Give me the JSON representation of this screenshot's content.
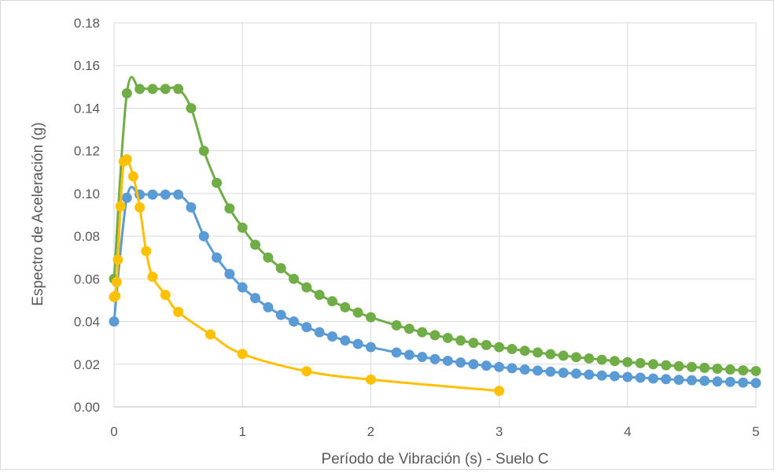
{
  "chart_data": {
    "type": "scatter",
    "title": "",
    "xlabel": "Período de Vibración (s) - Suelo C",
    "ylabel": "Espectro de Aceleración (g)",
    "xlim": [
      0,
      5
    ],
    "ylim": [
      0,
      0.18
    ],
    "x_ticks": [
      "0",
      "1",
      "2",
      "3",
      "4",
      "5"
    ],
    "y_ticks": [
      "0.00",
      "0.02",
      "0.04",
      "0.06",
      "0.08",
      "0.10",
      "0.12",
      "0.14",
      "0.16",
      "0.18"
    ],
    "grid": true,
    "legend": "none",
    "series": [
      {
        "color": "#70ad47",
        "x": [
          0,
          0.1,
          0.2,
          0.3,
          0.4,
          0.5,
          0.6,
          0.7,
          0.8,
          0.9,
          1.0,
          1.1,
          1.2,
          1.3,
          1.4,
          1.5,
          1.6,
          1.7,
          1.8,
          1.9,
          2.0,
          2.2,
          2.3,
          2.4,
          2.5,
          2.6,
          2.7,
          2.8,
          2.9,
          3.0,
          3.1,
          3.2,
          3.3,
          3.4,
          3.5,
          3.6,
          3.7,
          3.8,
          3.9,
          4.0,
          4.1,
          4.2,
          4.3,
          4.4,
          4.5,
          4.6,
          4.7,
          4.8,
          4.9,
          5.0
        ],
        "y": [
          0.06,
          0.147,
          0.149,
          0.149,
          0.149,
          0.149,
          0.14,
          0.12,
          0.105,
          0.093,
          0.084,
          0.076,
          0.07,
          0.065,
          0.06,
          0.056,
          0.0525,
          0.0495,
          0.0467,
          0.0442,
          0.042,
          0.0382,
          0.0366,
          0.035,
          0.0336,
          0.0323,
          0.0311,
          0.03,
          0.029,
          0.028,
          0.0271,
          0.0263,
          0.0255,
          0.0247,
          0.024,
          0.0233,
          0.0227,
          0.0221,
          0.0215,
          0.021,
          0.0205,
          0.02,
          0.0195,
          0.0191,
          0.0187,
          0.0183,
          0.0179,
          0.0175,
          0.0171,
          0.0168
        ]
      },
      {
        "color": "#5b9bd5",
        "x": [
          0,
          0.1,
          0.2,
          0.3,
          0.4,
          0.5,
          0.6,
          0.7,
          0.8,
          0.9,
          1.0,
          1.1,
          1.2,
          1.3,
          1.4,
          1.5,
          1.6,
          1.7,
          1.8,
          1.9,
          2.0,
          2.2,
          2.3,
          2.4,
          2.5,
          2.6,
          2.7,
          2.8,
          2.9,
          3.0,
          3.1,
          3.2,
          3.3,
          3.4,
          3.5,
          3.6,
          3.7,
          3.8,
          3.9,
          4.0,
          4.1,
          4.2,
          4.3,
          4.4,
          4.5,
          4.6,
          4.7,
          4.8,
          4.9,
          5.0
        ],
        "y": [
          0.04,
          0.098,
          0.0995,
          0.0995,
          0.0995,
          0.0995,
          0.0935,
          0.08,
          0.07,
          0.0623,
          0.056,
          0.051,
          0.0467,
          0.0431,
          0.04,
          0.0374,
          0.035,
          0.033,
          0.0311,
          0.0295,
          0.028,
          0.0255,
          0.0244,
          0.0234,
          0.0224,
          0.0216,
          0.0208,
          0.02,
          0.0193,
          0.0187,
          0.0181,
          0.0175,
          0.017,
          0.0165,
          0.016,
          0.0156,
          0.0151,
          0.0147,
          0.0144,
          0.014,
          0.0137,
          0.0133,
          0.013,
          0.0127,
          0.0125,
          0.0122,
          0.0119,
          0.0117,
          0.0114,
          0.0112
        ]
      },
      {
        "color": "#ffc000",
        "x": [
          0,
          0.01,
          0.02,
          0.03,
          0.05,
          0.075,
          0.1,
          0.15,
          0.2,
          0.25,
          0.3,
          0.4,
          0.5,
          0.75,
          1.0,
          1.5,
          2.0,
          3.0
        ],
        "y": [
          0.0515,
          0.052,
          0.0585,
          0.069,
          0.094,
          0.115,
          0.116,
          0.108,
          0.0935,
          0.073,
          0.061,
          0.0525,
          0.0445,
          0.034,
          0.0248,
          0.0167,
          0.0128,
          0.0075
        ]
      }
    ]
  }
}
